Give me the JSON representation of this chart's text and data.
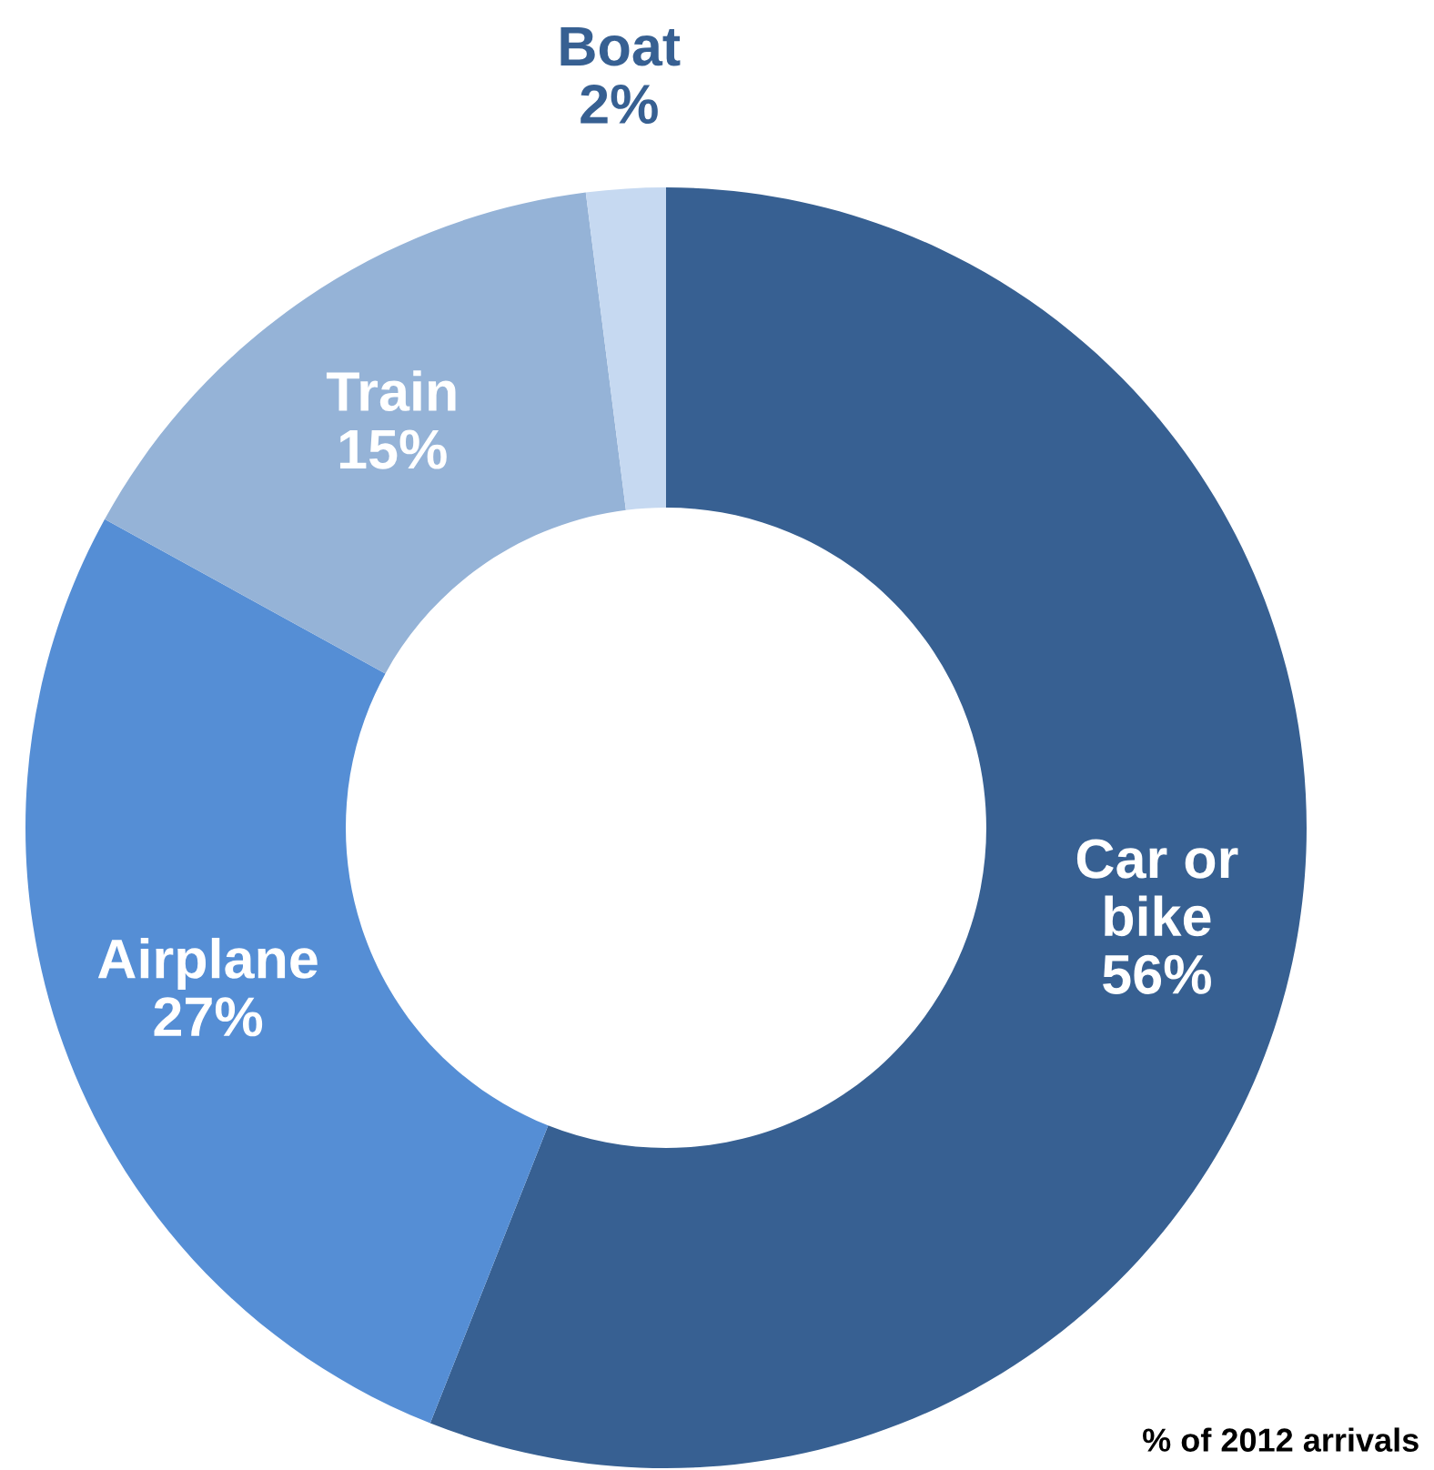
{
  "chart_data": {
    "type": "donut",
    "categories": [
      "Car or bike",
      "Airplane",
      "Train",
      "Boat"
    ],
    "values": [
      56,
      27,
      15,
      2
    ],
    "colors": [
      "#376092",
      "#558ed5",
      "#95b3d7",
      "#c6d9f1"
    ],
    "value_labels": [
      "56%",
      "27%",
      "15%",
      "2%"
    ],
    "annotations": [
      "% of 2012 arrivals"
    ],
    "legend": false
  }
}
